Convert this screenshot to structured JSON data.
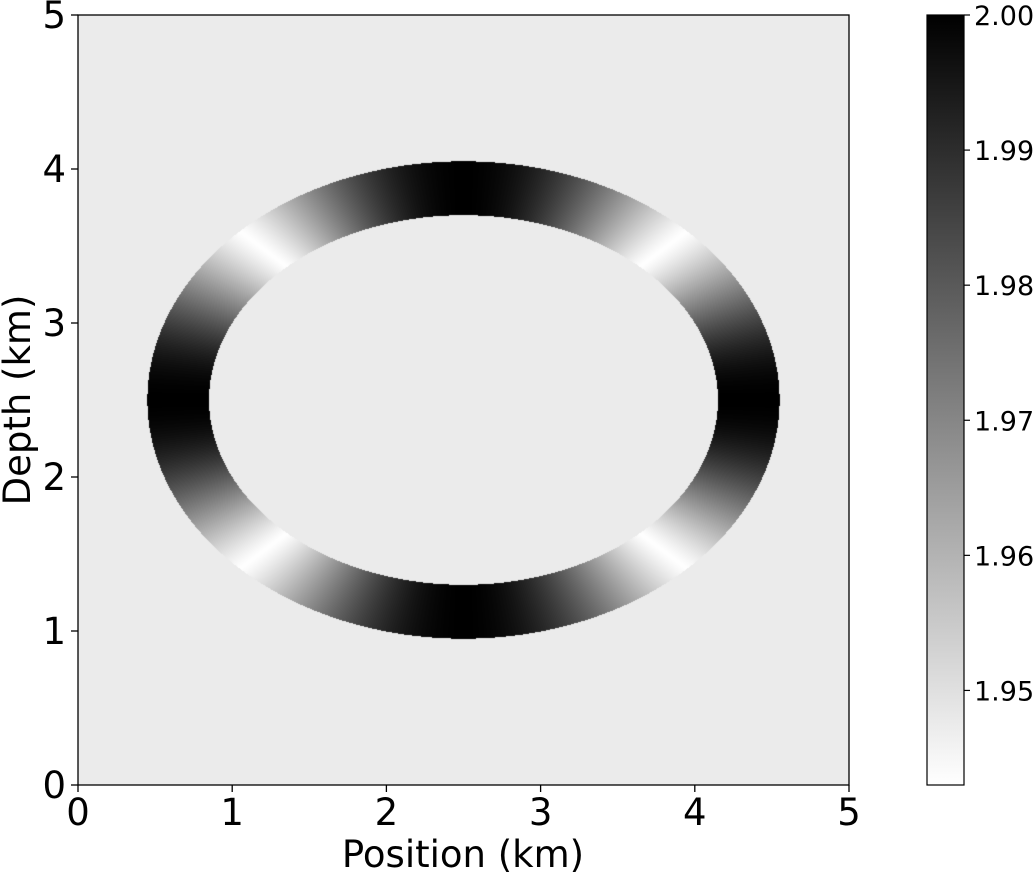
{
  "chart_data": {
    "type": "heatmap",
    "title": "",
    "xlabel": "Position (km)",
    "ylabel": "Depth (km)",
    "xlim": [
      0,
      5
    ],
    "ylim": [
      0,
      5
    ],
    "x_ticks": [
      "0",
      "1",
      "2",
      "3",
      "4",
      "5"
    ],
    "y_ticks": [
      "0",
      "1",
      "2",
      "3",
      "4",
      "5"
    ],
    "colormap": "gray_r",
    "background_value": 1.9475,
    "ring": {
      "center_x": 2.5,
      "center_y": 2.5,
      "outer_semi_axis_x": 2.05,
      "outer_semi_axis_y": 1.55,
      "inner_semi_axis_x": 1.65,
      "inner_semi_axis_y": 1.2,
      "min_value": 1.943,
      "max_value": 2.0,
      "max_at_directions": [
        "top",
        "bottom",
        "left",
        "right"
      ],
      "min_at_directions": [
        "diagonals"
      ]
    },
    "colorbar": {
      "range": [
        1.943,
        2.0
      ],
      "ticks": [
        1.95,
        1.96,
        1.97,
        1.98,
        1.99,
        2.0
      ],
      "tick_labels": [
        "1.95",
        "1.96",
        "1.97",
        "1.98",
        "1.99",
        "2.00"
      ]
    },
    "grid": false,
    "colors": {
      "background_field": "#f4f4f4",
      "high": "#000000",
      "low": "#ffffff"
    }
  }
}
